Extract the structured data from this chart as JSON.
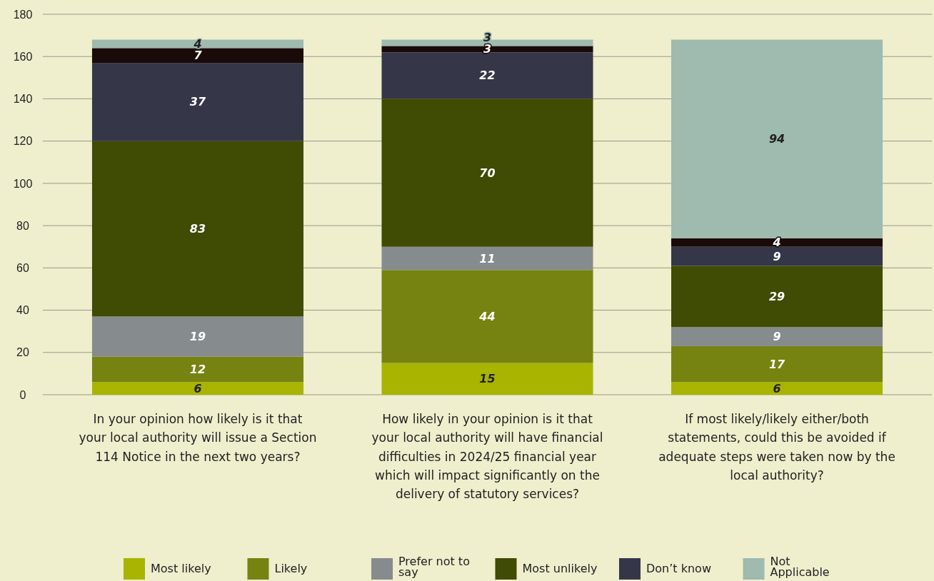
{
  "chart_data": {
    "type": "bar",
    "stacked": true,
    "data_labels": true,
    "grid": "y",
    "legend": "bottom",
    "categories": [
      "In your opinion how likely is it that your local authority will issue a Section 114 Notice in the next two years?",
      "How likely in your opinion is it that your local authority will have financial difficulties in 2024/25 financial year which will impact significantly on the delivery of statutory services?",
      "If most likely/likely either/both statements, could this be avoided if adequate steps were taken now by the local authority?"
    ],
    "ylim": [
      0,
      180
    ],
    "yticks": [
      0,
      20,
      40,
      60,
      80,
      100,
      120,
      140,
      160,
      180
    ],
    "series": [
      {
        "name": "Most likely",
        "color": "#a8b400",
        "values": [
          6,
          15,
          6
        ]
      },
      {
        "name": "Likely",
        "color": "#768311",
        "values": [
          12,
          44,
          17
        ]
      },
      {
        "name": "Prefer not to say",
        "color": "#868b8e",
        "values": [
          19,
          11,
          9
        ]
      },
      {
        "name": "Most unlikely",
        "color": "#404b03",
        "values": [
          83,
          70,
          29
        ]
      },
      {
        "name": "Don’t know",
        "color": "#353749",
        "values": [
          37,
          22,
          9
        ]
      },
      {
        "color": "#1a0a0a",
        "values": [
          7,
          3,
          4
        ]
      },
      {
        "name": "Not Applicable",
        "color": "#9fbaae",
        "values": [
          4,
          3,
          94
        ]
      }
    ]
  }
}
